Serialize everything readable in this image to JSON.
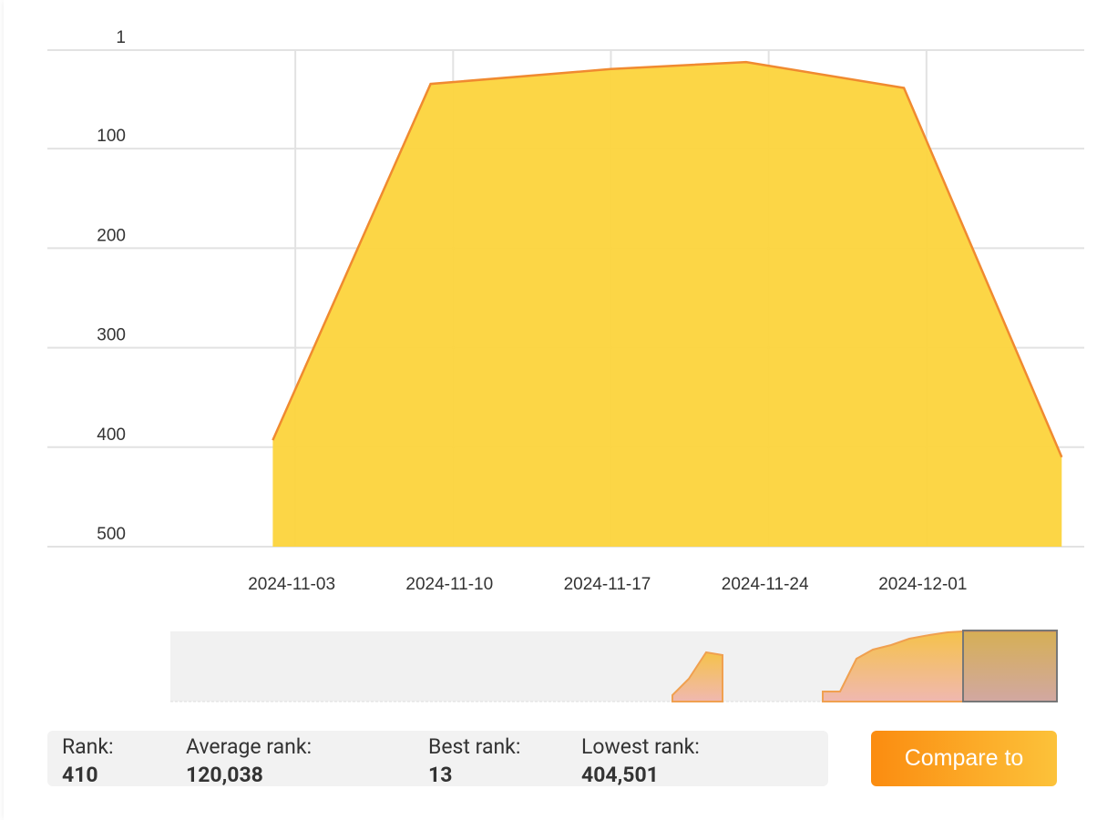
{
  "chart_data": {
    "type": "area",
    "x": [
      "2024-11-02",
      "2024-11-09",
      "2024-11-17",
      "2024-11-23",
      "2024-11-30",
      "2024-12-07"
    ],
    "values": [
      393,
      35,
      20,
      13,
      39,
      410
    ],
    "line_color": "#f08a30",
    "fill_color": "#fcd43c",
    "ylim": [
      1,
      500
    ],
    "y_reversed": true,
    "yticks": [
      1,
      100,
      200,
      300,
      400,
      500
    ],
    "xlim": [
      "2024-10-23",
      "2024-12-08"
    ],
    "xticks": [
      "2024-11-03",
      "2024-11-10",
      "2024-11-17",
      "2024-11-24",
      "2024-12-01"
    ],
    "grid": true
  },
  "stats": [
    {
      "label": "Rank:",
      "value": "410"
    },
    {
      "label": "Average rank:",
      "value": "120,038"
    },
    {
      "label": "Best rank:",
      "value": "13"
    },
    {
      "label": "Lowest rank:",
      "value": "404,501"
    }
  ],
  "button": "Compare to"
}
